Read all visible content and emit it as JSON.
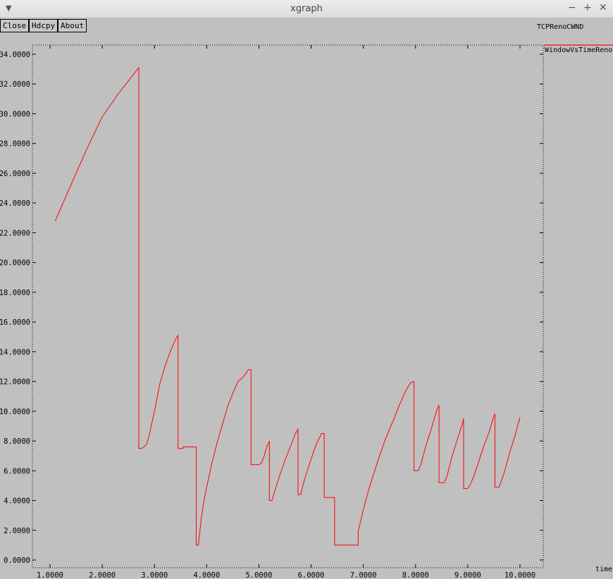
{
  "window": {
    "title": "xgraph",
    "controls": {
      "minimize": "−",
      "maximize": "+",
      "close": "✕"
    },
    "menu_icon": "chevron-down-icon"
  },
  "toolbar": {
    "close_label": "Close",
    "hdcpy_label": "Hdcpy",
    "about_label": "About"
  },
  "chart_data": {
    "type": "line",
    "title": "TCPRenoCWND",
    "xlabel": "time",
    "ylabel": "",
    "xlim": [
      1.0,
      10.0
    ],
    "ylim": [
      0.0,
      34.0
    ],
    "grid": false,
    "legend_position": "right",
    "x_tick_labels": [
      "1.0000",
      "2.0000",
      "3.0000",
      "4.0000",
      "5.0000",
      "6.0000",
      "7.0000",
      "8.0000",
      "9.0000",
      "10.0000"
    ],
    "y_tick_labels": [
      "0.0000",
      "2.0000",
      "4.0000",
      "6.0000",
      "8.0000",
      "10.0000",
      "12.0000",
      "14.0000",
      "16.0000",
      "18.0000",
      "20.0000",
      "22.0000",
      "24.0000",
      "26.0000",
      "28.0000",
      "30.0000",
      "32.0000",
      "34.0000"
    ],
    "series": [
      {
        "name": "WindowVsTimeReno",
        "color": "#ff0000",
        "x": [
          1.1,
          1.4,
          1.7,
          2.0,
          2.3,
          2.7,
          2.7,
          2.75,
          2.8,
          2.85,
          2.9,
          3.0,
          3.1,
          3.2,
          3.3,
          3.4,
          3.45,
          3.45,
          3.55,
          3.55,
          3.8,
          3.8,
          3.84,
          3.9,
          3.95,
          4.0,
          4.1,
          4.2,
          4.3,
          4.4,
          4.5,
          4.6,
          4.7,
          4.8,
          4.85,
          4.85,
          5.0,
          5.05,
          5.1,
          5.15,
          5.2,
          5.2,
          5.25,
          5.3,
          5.4,
          5.5,
          5.6,
          5.7,
          5.75,
          5.75,
          5.8,
          5.85,
          5.9,
          6.0,
          6.1,
          6.2,
          6.25,
          6.25,
          6.45,
          6.45,
          6.9,
          6.9,
          7.0,
          7.1,
          7.2,
          7.3,
          7.4,
          7.5,
          7.6,
          7.7,
          7.8,
          7.9,
          7.97,
          7.97,
          8.05,
          8.1,
          8.2,
          8.3,
          8.4,
          8.45,
          8.45,
          8.55,
          8.6,
          8.7,
          8.8,
          8.9,
          8.92,
          8.92,
          9.0,
          9.05,
          9.1,
          9.2,
          9.3,
          9.4,
          9.5,
          9.52,
          9.52,
          9.6,
          9.7,
          9.8,
          9.9,
          10.0
        ],
        "y": [
          22.8,
          25.2,
          27.6,
          29.8,
          31.3,
          33.1,
          7.5,
          7.5,
          7.6,
          7.8,
          8.4,
          10.0,
          11.8,
          13.0,
          14.0,
          14.8,
          15.1,
          7.5,
          7.5,
          7.6,
          7.6,
          1.0,
          1.0,
          2.9,
          4.0,
          4.9,
          6.5,
          7.9,
          9.1,
          10.3,
          11.2,
          12.0,
          12.3,
          12.8,
          12.8,
          6.4,
          6.4,
          6.5,
          7.0,
          7.6,
          8.0,
          4.0,
          4.0,
          4.6,
          5.7,
          6.7,
          7.6,
          8.5,
          8.8,
          4.4,
          4.4,
          5.1,
          5.7,
          6.8,
          7.8,
          8.5,
          8.5,
          4.2,
          4.2,
          1.0,
          1.0,
          1.9,
          3.4,
          4.7,
          5.8,
          6.9,
          7.9,
          8.8,
          9.6,
          10.5,
          11.3,
          11.9,
          12.0,
          6.0,
          6.0,
          6.4,
          7.7,
          8.8,
          10.0,
          10.4,
          5.2,
          5.2,
          5.6,
          7.0,
          8.1,
          9.2,
          9.5,
          4.8,
          4.8,
          5.1,
          5.5,
          6.5,
          7.6,
          8.5,
          9.7,
          9.8,
          4.9,
          4.9,
          5.9,
          7.2,
          8.3,
          9.6
        ]
      }
    ]
  }
}
